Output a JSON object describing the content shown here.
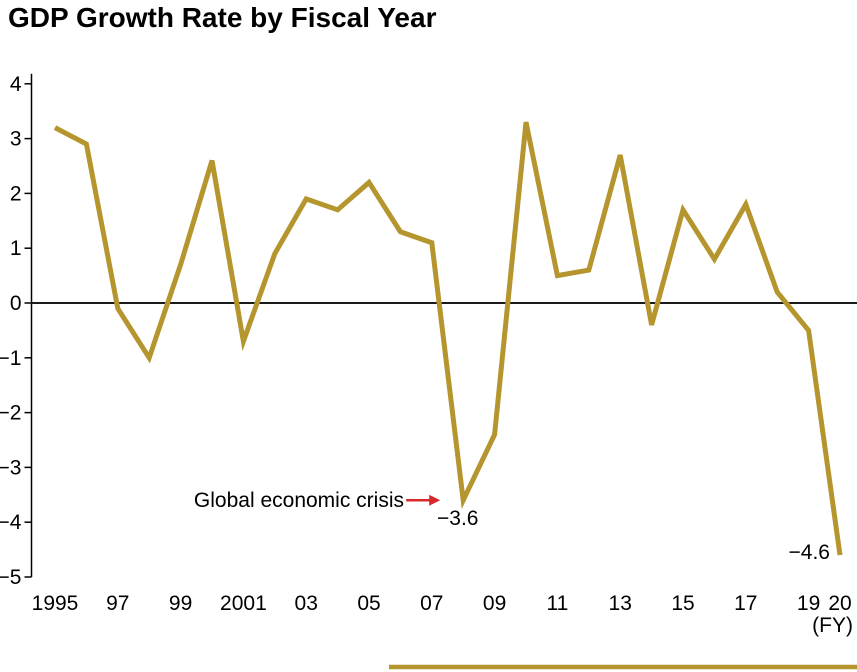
{
  "page": {
    "title": "GDP Growth Rate by Fiscal Year"
  },
  "chart_data": {
    "type": "line",
    "title": "GDP Growth Rate by Fiscal Year",
    "x_unit_label": "(FY)",
    "x": [
      1995,
      1996,
      1997,
      1998,
      1999,
      2000,
      2001,
      2002,
      2003,
      2004,
      2005,
      2006,
      2007,
      2008,
      2009,
      2010,
      2011,
      2012,
      2013,
      2014,
      2015,
      2016,
      2017,
      2018,
      2019,
      2020
    ],
    "values": [
      3.2,
      2.9,
      -0.1,
      -1.0,
      0.7,
      2.6,
      -0.7,
      0.9,
      1.9,
      1.7,
      2.2,
      1.3,
      1.1,
      -3.6,
      -2.4,
      3.3,
      0.5,
      0.6,
      2.7,
      -0.4,
      1.7,
      0.8,
      1.8,
      0.2,
      -0.5,
      -4.6
    ],
    "ylim": [
      -5,
      4
    ],
    "yticks": [
      4,
      3,
      2,
      1,
      0,
      -1,
      -2,
      -3,
      -4,
      -5
    ],
    "xticks": [
      {
        "label": "1995",
        "year": 1995
      },
      {
        "label": "97",
        "year": 1997
      },
      {
        "label": "99",
        "year": 1999
      },
      {
        "label": "2001",
        "year": 2001
      },
      {
        "label": "03",
        "year": 2003
      },
      {
        "label": "05",
        "year": 2005
      },
      {
        "label": "07",
        "year": 2007
      },
      {
        "label": "09",
        "year": 2009
      },
      {
        "label": "11",
        "year": 2011
      },
      {
        "label": "13",
        "year": 2013
      },
      {
        "label": "15",
        "year": 2015
      },
      {
        "label": "17",
        "year": 2017
      },
      {
        "label": "19",
        "year": 2019
      },
      {
        "label": "20",
        "year": 2020
      }
    ],
    "line_color": "#b5952e",
    "zero_line_color": "#1a1a1a",
    "axis_color": "#000000",
    "grid": false,
    "zero_line": true,
    "legend": "none",
    "annotations": [
      {
        "id": "crisis-label",
        "text": "Global economic crisis",
        "arrow_color": "#d7282e",
        "target_year": 2008,
        "target_value": -3.6
      },
      {
        "id": "crisis-value",
        "text": "−3.6",
        "year": 2008,
        "value": -3.6
      },
      {
        "id": "fy2020-value",
        "text": "−4.6",
        "year": 2020,
        "value": -4.6
      }
    ]
  }
}
